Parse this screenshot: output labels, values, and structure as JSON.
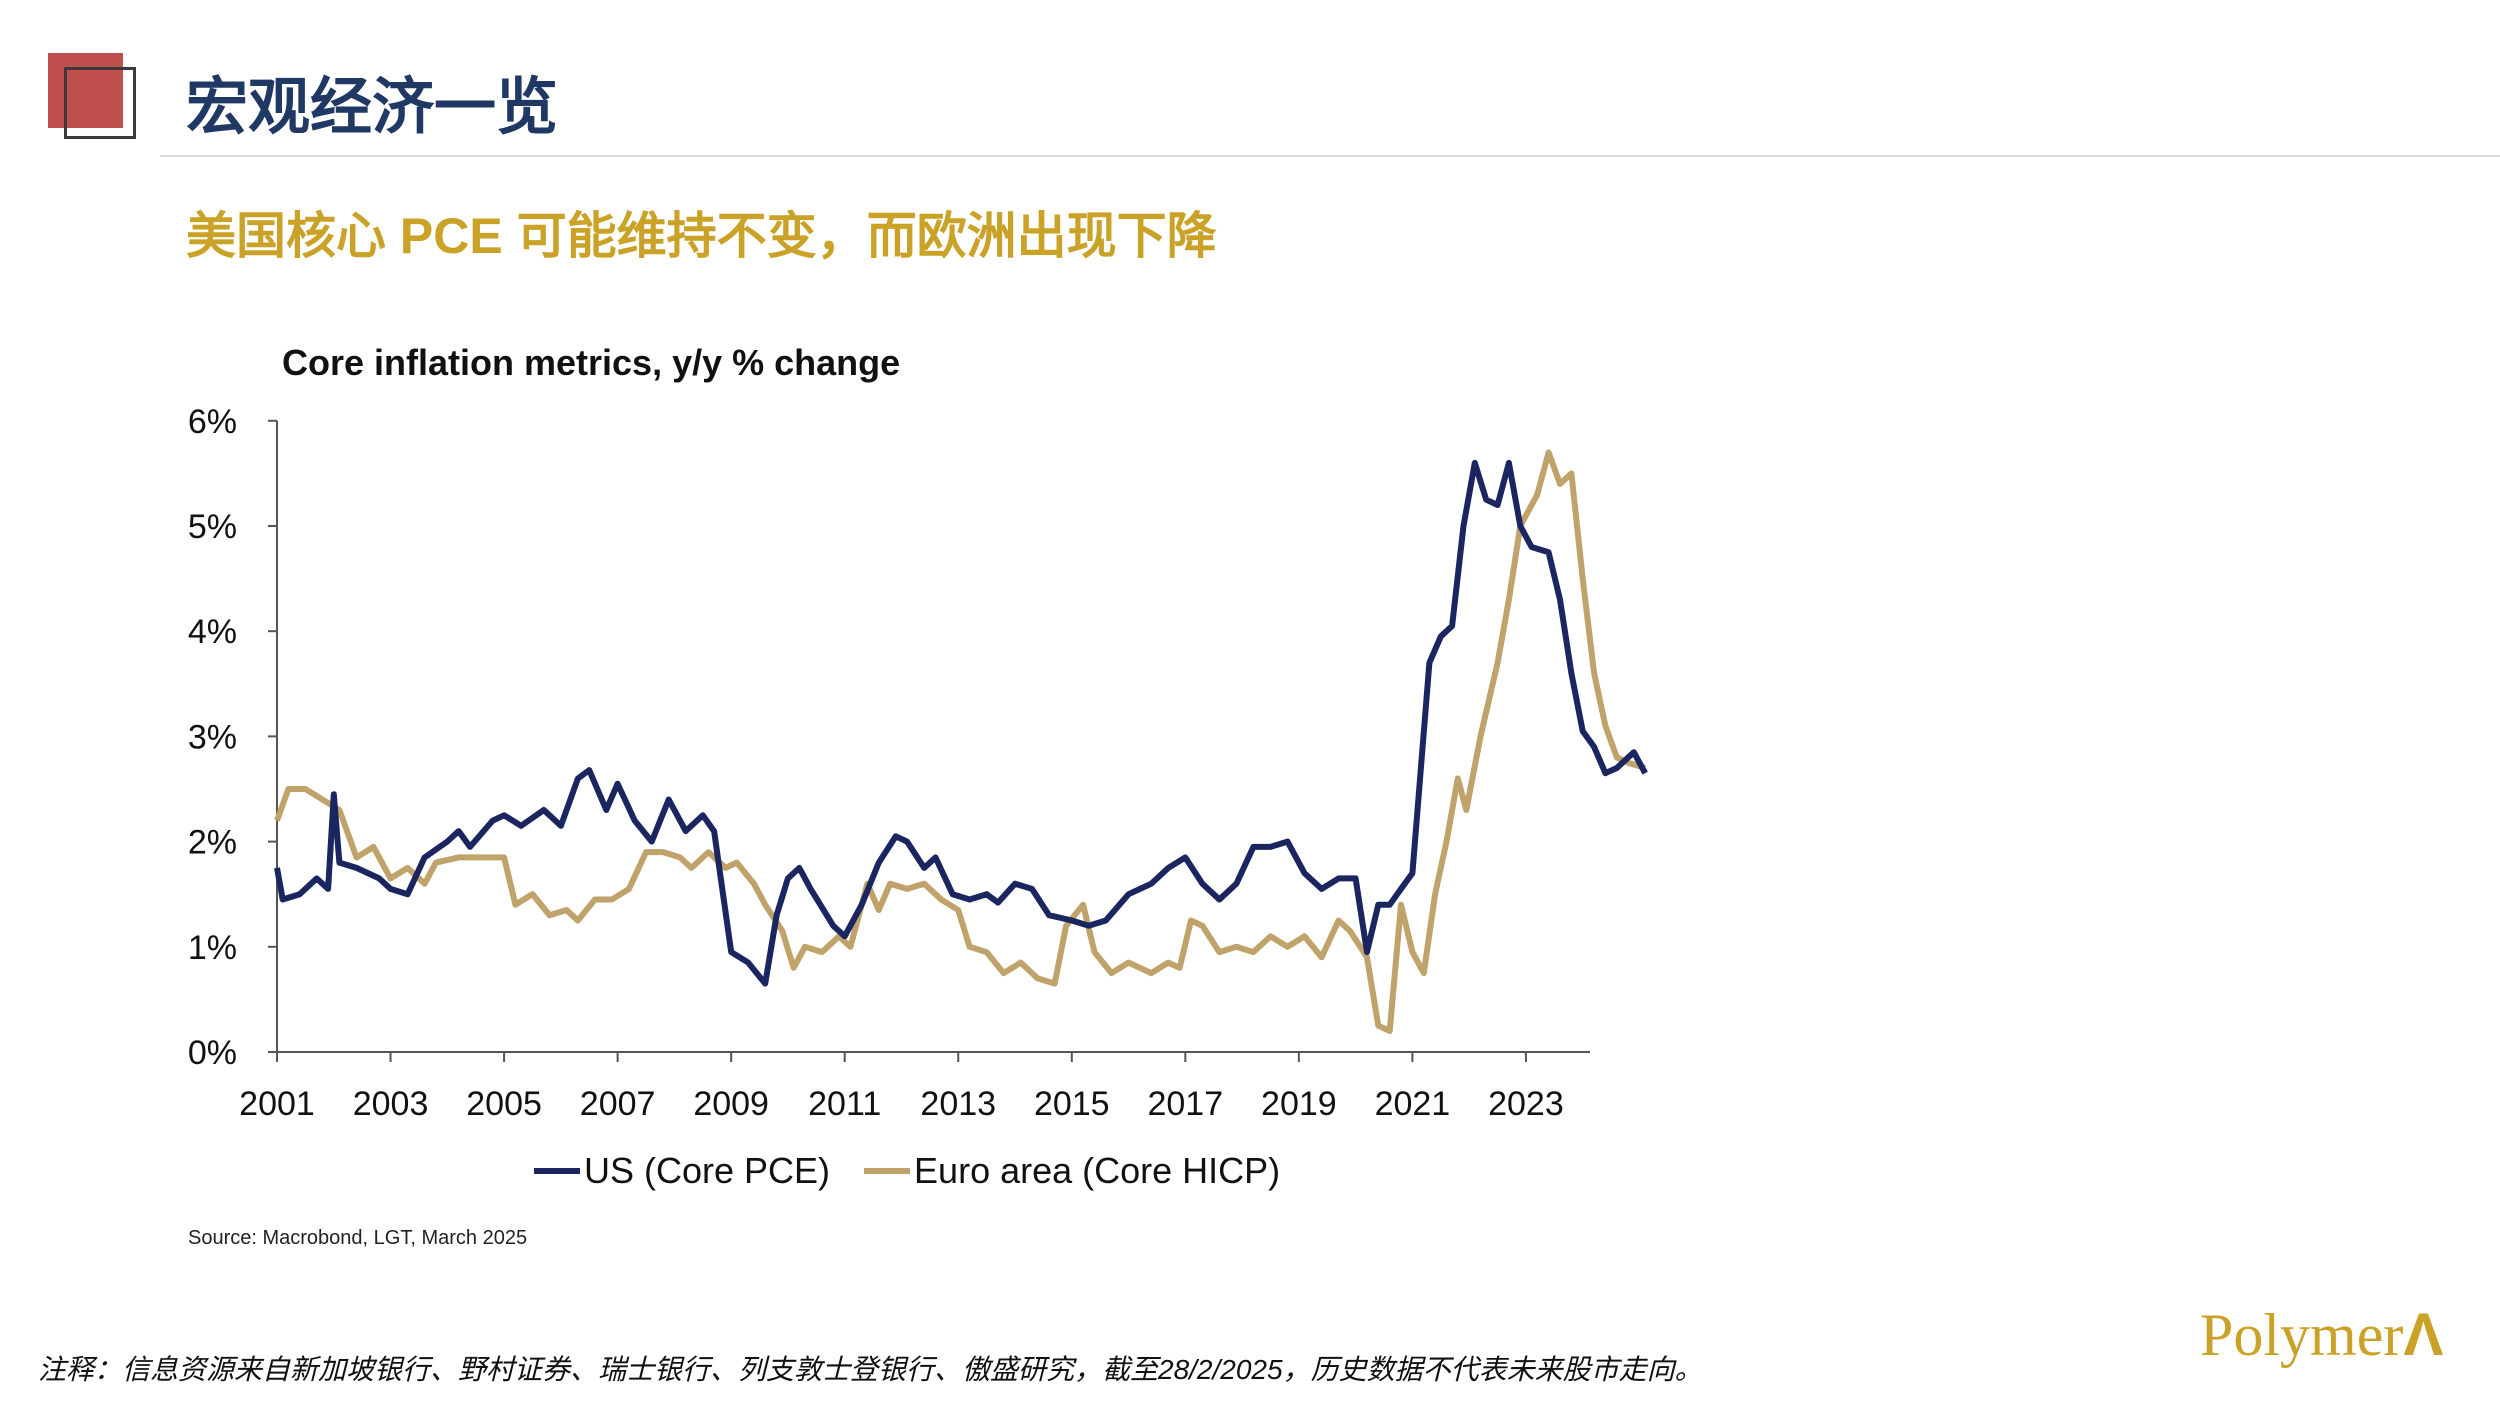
{
  "header": {
    "title": "宏观经济一览",
    "subtitle": "美国核心 PCE 可能维持不变，而欧洲出现下降"
  },
  "colors": {
    "title": "#1F3864",
    "subtitle": "#C9A227",
    "accent_red": "#C0504D",
    "us": "#1B2560",
    "euro": "#BFA36A"
  },
  "chart_data": {
    "type": "line",
    "title": "Core inflation metrics, y/y % change",
    "xlabel": "",
    "ylabel": "",
    "xlim": [
      2001,
      2025.1
    ],
    "ylim": [
      0,
      6
    ],
    "x_ticks": [
      "2001",
      "2003",
      "2005",
      "2007",
      "2009",
      "2011",
      "2013",
      "2015",
      "2017",
      "2019",
      "2021",
      "2023"
    ],
    "y_ticks": [
      "0%",
      "1%",
      "2%",
      "3%",
      "4%",
      "5%",
      "6%"
    ],
    "legend_position": "bottom",
    "grid": false,
    "series": [
      {
        "name": "US (Core PCE)",
        "color": "#1B2560",
        "points": [
          [
            2001.0,
            1.75
          ],
          [
            2001.1,
            1.45
          ],
          [
            2001.4,
            1.5
          ],
          [
            2001.7,
            1.65
          ],
          [
            2001.9,
            1.55
          ],
          [
            2002.0,
            2.45
          ],
          [
            2002.1,
            1.8
          ],
          [
            2002.4,
            1.75
          ],
          [
            2002.8,
            1.65
          ],
          [
            2003.0,
            1.55
          ],
          [
            2003.3,
            1.5
          ],
          [
            2003.6,
            1.85
          ],
          [
            2004.0,
            2.0
          ],
          [
            2004.2,
            2.1
          ],
          [
            2004.4,
            1.95
          ],
          [
            2004.8,
            2.2
          ],
          [
            2005.0,
            2.25
          ],
          [
            2005.3,
            2.15
          ],
          [
            2005.7,
            2.3
          ],
          [
            2006.0,
            2.15
          ],
          [
            2006.3,
            2.6
          ],
          [
            2006.5,
            2.68
          ],
          [
            2006.8,
            2.3
          ],
          [
            2007.0,
            2.55
          ],
          [
            2007.3,
            2.2
          ],
          [
            2007.6,
            2.0
          ],
          [
            2007.9,
            2.4
          ],
          [
            2008.2,
            2.1
          ],
          [
            2008.5,
            2.25
          ],
          [
            2008.7,
            2.1
          ],
          [
            2009.0,
            0.95
          ],
          [
            2009.3,
            0.85
          ],
          [
            2009.6,
            0.65
          ],
          [
            2009.8,
            1.3
          ],
          [
            2010.0,
            1.65
          ],
          [
            2010.2,
            1.75
          ],
          [
            2010.4,
            1.55
          ],
          [
            2010.8,
            1.2
          ],
          [
            2011.0,
            1.1
          ],
          [
            2011.3,
            1.4
          ],
          [
            2011.6,
            1.8
          ],
          [
            2011.9,
            2.05
          ],
          [
            2012.1,
            2.0
          ],
          [
            2012.4,
            1.75
          ],
          [
            2012.6,
            1.85
          ],
          [
            2012.9,
            1.5
          ],
          [
            2013.2,
            1.45
          ],
          [
            2013.5,
            1.5
          ],
          [
            2013.7,
            1.42
          ],
          [
            2014.0,
            1.6
          ],
          [
            2014.3,
            1.55
          ],
          [
            2014.6,
            1.3
          ],
          [
            2015.0,
            1.25
          ],
          [
            2015.3,
            1.2
          ],
          [
            2015.6,
            1.25
          ],
          [
            2016.0,
            1.5
          ],
          [
            2016.4,
            1.6
          ],
          [
            2016.7,
            1.75
          ],
          [
            2017.0,
            1.85
          ],
          [
            2017.3,
            1.6
          ],
          [
            2017.6,
            1.45
          ],
          [
            2017.9,
            1.6
          ],
          [
            2018.2,
            1.95
          ],
          [
            2018.5,
            1.95
          ],
          [
            2018.8,
            2.0
          ],
          [
            2019.1,
            1.7
          ],
          [
            2019.4,
            1.55
          ],
          [
            2019.7,
            1.65
          ],
          [
            2020.0,
            1.65
          ],
          [
            2020.2,
            0.95
          ],
          [
            2020.4,
            1.4
          ],
          [
            2020.6,
            1.4
          ],
          [
            2020.8,
            1.55
          ],
          [
            2021.0,
            1.7
          ],
          [
            2021.3,
            3.7
          ],
          [
            2021.5,
            3.95
          ],
          [
            2021.7,
            4.05
          ],
          [
            2021.9,
            5.0
          ],
          [
            2022.1,
            5.6
          ],
          [
            2022.3,
            5.25
          ],
          [
            2022.5,
            5.2
          ],
          [
            2022.7,
            5.6
          ],
          [
            2022.9,
            5.0
          ],
          [
            2023.1,
            4.8
          ],
          [
            2023.4,
            4.75
          ],
          [
            2023.6,
            4.3
          ],
          [
            2023.8,
            3.6
          ],
          [
            2024.0,
            3.05
          ],
          [
            2024.2,
            2.9
          ],
          [
            2024.4,
            2.65
          ],
          [
            2024.6,
            2.7
          ],
          [
            2024.9,
            2.85
          ],
          [
            2025.1,
            2.65
          ]
        ]
      },
      {
        "name": "Euro area (Core HICP)",
        "color": "#BFA36A",
        "points": [
          [
            2001.0,
            2.2
          ],
          [
            2001.2,
            2.5
          ],
          [
            2001.5,
            2.5
          ],
          [
            2001.8,
            2.4
          ],
          [
            2002.1,
            2.3
          ],
          [
            2002.4,
            1.85
          ],
          [
            2002.7,
            1.95
          ],
          [
            2003.0,
            1.65
          ],
          [
            2003.3,
            1.75
          ],
          [
            2003.6,
            1.6
          ],
          [
            2003.8,
            1.8
          ],
          [
            2004.2,
            1.85
          ],
          [
            2004.6,
            1.85
          ],
          [
            2005.0,
            1.85
          ],
          [
            2005.2,
            1.4
          ],
          [
            2005.5,
            1.5
          ],
          [
            2005.8,
            1.3
          ],
          [
            2006.1,
            1.35
          ],
          [
            2006.3,
            1.25
          ],
          [
            2006.6,
            1.45
          ],
          [
            2006.9,
            1.45
          ],
          [
            2007.2,
            1.55
          ],
          [
            2007.5,
            1.9
          ],
          [
            2007.8,
            1.9
          ],
          [
            2008.1,
            1.85
          ],
          [
            2008.3,
            1.75
          ],
          [
            2008.6,
            1.9
          ],
          [
            2008.9,
            1.75
          ],
          [
            2009.1,
            1.8
          ],
          [
            2009.4,
            1.6
          ],
          [
            2009.6,
            1.4
          ],
          [
            2009.9,
            1.15
          ],
          [
            2010.1,
            0.8
          ],
          [
            2010.3,
            1.0
          ],
          [
            2010.6,
            0.95
          ],
          [
            2010.9,
            1.1
          ],
          [
            2011.1,
            1.0
          ],
          [
            2011.4,
            1.6
          ],
          [
            2011.6,
            1.35
          ],
          [
            2011.8,
            1.6
          ],
          [
            2012.1,
            1.55
          ],
          [
            2012.4,
            1.6
          ],
          [
            2012.7,
            1.45
          ],
          [
            2013.0,
            1.35
          ],
          [
            2013.2,
            1.0
          ],
          [
            2013.5,
            0.95
          ],
          [
            2013.8,
            0.75
          ],
          [
            2014.1,
            0.85
          ],
          [
            2014.4,
            0.7
          ],
          [
            2014.7,
            0.65
          ],
          [
            2014.9,
            1.2
          ],
          [
            2015.2,
            1.4
          ],
          [
            2015.4,
            0.95
          ],
          [
            2015.7,
            0.75
          ],
          [
            2016.0,
            0.85
          ],
          [
            2016.4,
            0.75
          ],
          [
            2016.7,
            0.85
          ],
          [
            2016.9,
            0.8
          ],
          [
            2017.1,
            1.25
          ],
          [
            2017.3,
            1.2
          ],
          [
            2017.6,
            0.95
          ],
          [
            2017.9,
            1.0
          ],
          [
            2018.2,
            0.95
          ],
          [
            2018.5,
            1.1
          ],
          [
            2018.8,
            1.0
          ],
          [
            2019.1,
            1.1
          ],
          [
            2019.4,
            0.9
          ],
          [
            2019.7,
            1.25
          ],
          [
            2019.9,
            1.15
          ],
          [
            2020.2,
            0.9
          ],
          [
            2020.4,
            0.25
          ],
          [
            2020.6,
            0.2
          ],
          [
            2020.8,
            1.4
          ],
          [
            2021.0,
            0.95
          ],
          [
            2021.2,
            0.75
          ],
          [
            2021.4,
            1.5
          ],
          [
            2021.6,
            2.0
          ],
          [
            2021.8,
            2.6
          ],
          [
            2021.95,
            2.3
          ],
          [
            2022.2,
            3.0
          ],
          [
            2022.5,
            3.7
          ],
          [
            2022.7,
            4.3
          ],
          [
            2022.9,
            5.0
          ],
          [
            2023.2,
            5.3
          ],
          [
            2023.4,
            5.7
          ],
          [
            2023.6,
            5.4
          ],
          [
            2023.8,
            5.5
          ],
          [
            2024.0,
            4.5
          ],
          [
            2024.2,
            3.6
          ],
          [
            2024.4,
            3.1
          ],
          [
            2024.6,
            2.8
          ],
          [
            2024.8,
            2.75
          ],
          [
            2025.1,
            2.7
          ]
        ]
      }
    ]
  },
  "source": "Source: Macrobond, LGT, March 2025",
  "footnote": "注释：信息资源来自新加坡银行、野村证券、瑞士银行、列支敦士登银行、傲盛研究，截至28/2/2025，历史数据不代表未来股市走向。",
  "logo": "PolymerA"
}
